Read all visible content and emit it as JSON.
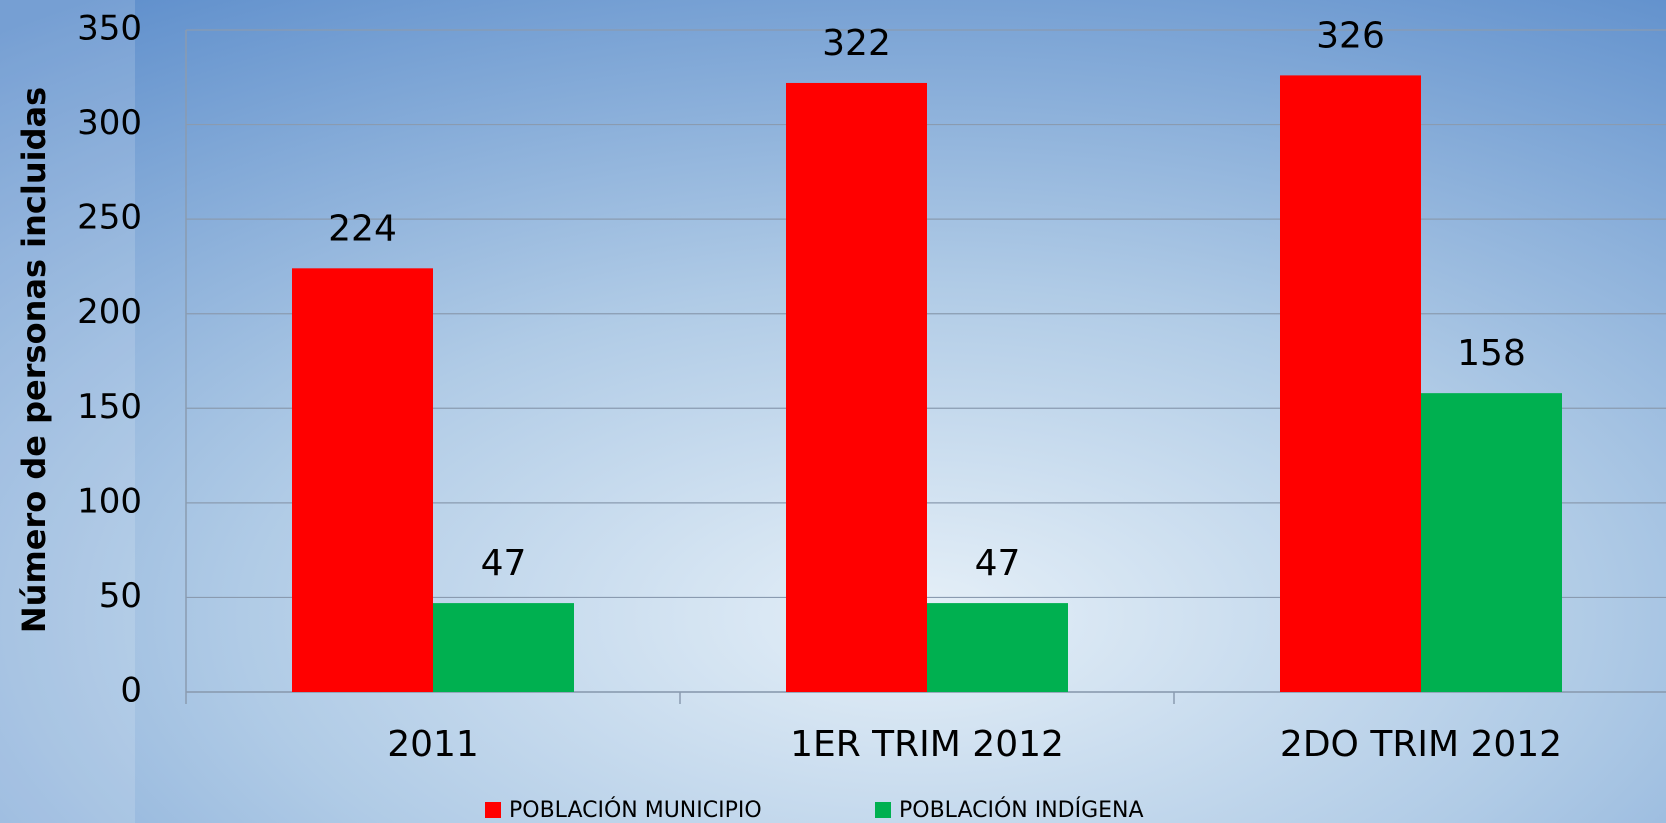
{
  "chart_data": {
    "type": "bar",
    "y_label": "Número de personas incluidas",
    "categories": [
      "2011",
      "1ER TRIM 2012",
      "2DO TRIM 2012"
    ],
    "series": [
      {
        "name": "POBLACIÓN MUNICIPIO",
        "color": "#ff0000",
        "values": [
          224,
          322,
          326
        ]
      },
      {
        "name": "POBLACIÓN INDÍGENA",
        "color": "#00b050",
        "values": [
          47,
          47,
          158
        ]
      }
    ],
    "ylim": [
      0,
      350
    ],
    "yticks": [
      0,
      50,
      100,
      150,
      200,
      250,
      300,
      350
    ],
    "grid": true,
    "legend": "bottom"
  }
}
